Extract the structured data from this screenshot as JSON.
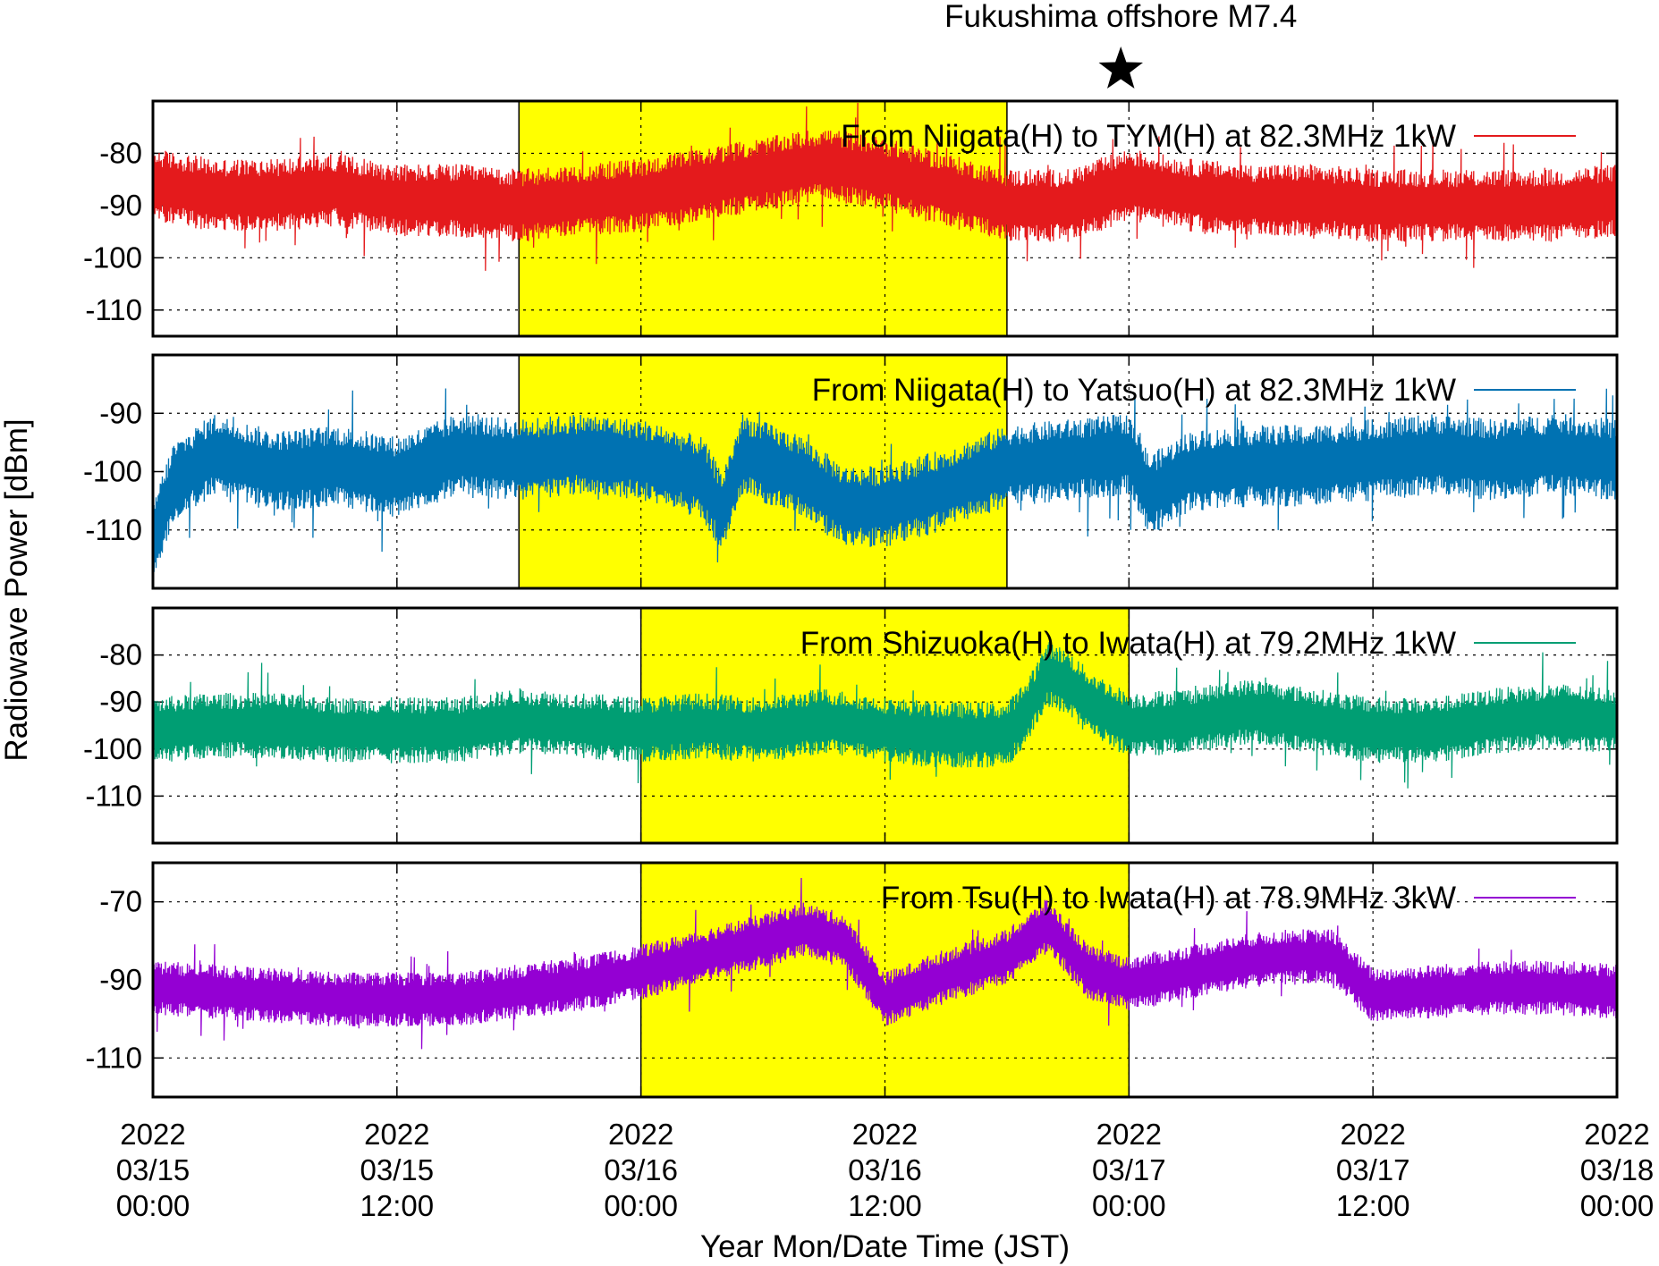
{
  "chart_data": {
    "type": "line",
    "xlabel": "Year Mon/Date Time (JST)",
    "ylabel": "Radiowave Power [dBm]",
    "x_range": [
      "2022-03-15 00:00",
      "2022-03-18 00:00"
    ],
    "x_ticks": [
      {
        "value": "2022-03-15 00:00",
        "lines": [
          "2022",
          "03/15",
          "00:00"
        ]
      },
      {
        "value": "2022-03-15 12:00",
        "lines": [
          "2022",
          "03/15",
          "12:00"
        ]
      },
      {
        "value": "2022-03-16 00:00",
        "lines": [
          "2022",
          "03/16",
          "00:00"
        ]
      },
      {
        "value": "2022-03-16 12:00",
        "lines": [
          "2022",
          "03/16",
          "12:00"
        ]
      },
      {
        "value": "2022-03-17 00:00",
        "lines": [
          "2022",
          "03/17",
          "00:00"
        ]
      },
      {
        "value": "2022-03-17 12:00",
        "lines": [
          "2022",
          "03/17",
          "12:00"
        ]
      },
      {
        "value": "2022-03-18 00:00",
        "lines": [
          "2022",
          "03/18",
          "00:00"
        ]
      }
    ],
    "grid": true,
    "legend_position": "top-right",
    "annotation": {
      "text": "Fukushima offshore M7.4",
      "marker": "star",
      "x": "2022-03-16 23:36"
    },
    "panels": [
      {
        "series": {
          "name": "From Niigata(H) to TYM(H) at 82.3MHz 1kW",
          "color": "#e41a1c",
          "points": [
            [
              "2022-03-15 00:00",
              -86
            ],
            [
              "2022-03-15 03:00",
              -88
            ],
            [
              "2022-03-15 06:00",
              -88
            ],
            [
              "2022-03-15 09:00",
              -87
            ],
            [
              "2022-03-15 12:00",
              -89
            ],
            [
              "2022-03-15 15:00",
              -89
            ],
            [
              "2022-03-15 18:00",
              -90
            ],
            [
              "2022-03-15 21:00",
              -89
            ],
            [
              "2022-03-16 00:00",
              -88
            ],
            [
              "2022-03-16 03:00",
              -86
            ],
            [
              "2022-03-16 06:00",
              -84
            ],
            [
              "2022-03-16 09:00",
              -82
            ],
            [
              "2022-03-16 12:00",
              -84
            ],
            [
              "2022-03-16 15:00",
              -87
            ],
            [
              "2022-03-16 18:00",
              -90
            ],
            [
              "2022-03-16 21:00",
              -90
            ],
            [
              "2022-03-17 00:00",
              -86
            ],
            [
              "2022-03-17 03:00",
              -88
            ],
            [
              "2022-03-17 06:00",
              -89
            ],
            [
              "2022-03-17 09:00",
              -89
            ],
            [
              "2022-03-17 12:00",
              -90
            ],
            [
              "2022-03-17 15:00",
              -90
            ],
            [
              "2022-03-17 18:00",
              -90
            ],
            [
              "2022-03-17 21:00",
              -90
            ],
            [
              "2022-03-18 00:00",
              -89
            ]
          ]
        },
        "ylim": [
          -115,
          -70
        ],
        "yticks": [
          -80,
          -90,
          -100,
          -110
        ],
        "highlight": [
          "2022-03-15 18:00",
          "2022-03-16 18:00"
        ]
      },
      {
        "series": {
          "name": "From Niigata(H) to Yatsuo(H) at 82.3MHz 1kW",
          "color": "#0072b2",
          "points": [
            [
              "2022-03-15 00:00",
              -112
            ],
            [
              "2022-03-15 01:00",
              -102
            ],
            [
              "2022-03-15 03:00",
              -97
            ],
            [
              "2022-03-15 06:00",
              -100
            ],
            [
              "2022-03-15 09:00",
              -99
            ],
            [
              "2022-03-15 12:00",
              -101
            ],
            [
              "2022-03-15 15:00",
              -97
            ],
            [
              "2022-03-15 18:00",
              -98
            ],
            [
              "2022-03-15 21:00",
              -97
            ],
            [
              "2022-03-16 00:00",
              -98
            ],
            [
              "2022-03-16 03:00",
              -101
            ],
            [
              "2022-03-16 04:00",
              -107
            ],
            [
              "2022-03-16 05:00",
              -97
            ],
            [
              "2022-03-16 08:00",
              -101
            ],
            [
              "2022-03-16 10:00",
              -106
            ],
            [
              "2022-03-16 12:00",
              -106
            ],
            [
              "2022-03-16 15:00",
              -103
            ],
            [
              "2022-03-16 18:00",
              -99
            ],
            [
              "2022-03-16 21:00",
              -98
            ],
            [
              "2022-03-17 00:00",
              -97
            ],
            [
              "2022-03-17 01:00",
              -104
            ],
            [
              "2022-03-17 03:00",
              -100
            ],
            [
              "2022-03-17 06:00",
              -99
            ],
            [
              "2022-03-17 09:00",
              -99
            ],
            [
              "2022-03-17 12:00",
              -98
            ],
            [
              "2022-03-17 15:00",
              -97
            ],
            [
              "2022-03-17 18:00",
              -98
            ],
            [
              "2022-03-17 21:00",
              -97
            ],
            [
              "2022-03-18 00:00",
              -98
            ]
          ]
        },
        "ylim": [
          -120,
          -80
        ],
        "yticks": [
          -90,
          -100,
          -110
        ],
        "highlight": [
          "2022-03-15 18:00",
          "2022-03-16 18:00"
        ]
      },
      {
        "series": {
          "name": "From Shizuoka(H) to Iwata(H) at 79.2MHz 1kW",
          "color": "#009e73",
          "points": [
            [
              "2022-03-15 00:00",
              -96
            ],
            [
              "2022-03-15 03:00",
              -95
            ],
            [
              "2022-03-15 06:00",
              -95
            ],
            [
              "2022-03-15 09:00",
              -96
            ],
            [
              "2022-03-15 12:00",
              -96
            ],
            [
              "2022-03-15 15:00",
              -96
            ],
            [
              "2022-03-15 18:00",
              -94
            ],
            [
              "2022-03-15 21:00",
              -95
            ],
            [
              "2022-03-16 00:00",
              -96
            ],
            [
              "2022-03-16 03:00",
              -95
            ],
            [
              "2022-03-16 06:00",
              -96
            ],
            [
              "2022-03-16 09:00",
              -94
            ],
            [
              "2022-03-16 12:00",
              -96
            ],
            [
              "2022-03-16 15:00",
              -97
            ],
            [
              "2022-03-16 18:00",
              -97
            ],
            [
              "2022-03-16 19:00",
              -92
            ],
            [
              "2022-03-16 20:00",
              -84
            ],
            [
              "2022-03-16 21:00",
              -86
            ],
            [
              "2022-03-16 22:00",
              -90
            ],
            [
              "2022-03-17 00:00",
              -95
            ],
            [
              "2022-03-17 03:00",
              -94
            ],
            [
              "2022-03-17 06:00",
              -92
            ],
            [
              "2022-03-17 09:00",
              -94
            ],
            [
              "2022-03-17 12:00",
              -96
            ],
            [
              "2022-03-17 15:00",
              -96
            ],
            [
              "2022-03-17 18:00",
              -94
            ],
            [
              "2022-03-17 21:00",
              -93
            ],
            [
              "2022-03-18 00:00",
              -94
            ]
          ]
        },
        "ylim": [
          -120,
          -70
        ],
        "yticks": [
          -80,
          -90,
          -100,
          -110
        ],
        "highlight": [
          "2022-03-16 00:00",
          "2022-03-17 00:00"
        ]
      },
      {
        "series": {
          "name": "From Tsu(H) to Iwata(H) at 78.9MHz 3kW",
          "color": "#9400d3",
          "points": [
            [
              "2022-03-15 00:00",
              -92
            ],
            [
              "2022-03-15 03:00",
              -93
            ],
            [
              "2022-03-15 06:00",
              -94
            ],
            [
              "2022-03-15 09:00",
              -95
            ],
            [
              "2022-03-15 12:00",
              -95
            ],
            [
              "2022-03-15 15:00",
              -95
            ],
            [
              "2022-03-15 18:00",
              -93
            ],
            [
              "2022-03-15 21:00",
              -91
            ],
            [
              "2022-03-16 00:00",
              -88
            ],
            [
              "2022-03-16 03:00",
              -84
            ],
            [
              "2022-03-16 06:00",
              -80
            ],
            [
              "2022-03-16 08:00",
              -77
            ],
            [
              "2022-03-16 10:00",
              -80
            ],
            [
              "2022-03-16 12:00",
              -95
            ],
            [
              "2022-03-16 15:00",
              -89
            ],
            [
              "2022-03-16 18:00",
              -84
            ],
            [
              "2022-03-16 20:00",
              -76
            ],
            [
              "2022-03-16 22:00",
              -88
            ],
            [
              "2022-03-17 00:00",
              -91
            ],
            [
              "2022-03-17 03:00",
              -88
            ],
            [
              "2022-03-17 06:00",
              -85
            ],
            [
              "2022-03-17 08:00",
              -84
            ],
            [
              "2022-03-17 10:00",
              -84
            ],
            [
              "2022-03-17 12:00",
              -94
            ],
            [
              "2022-03-17 15:00",
              -93
            ],
            [
              "2022-03-17 18:00",
              -92
            ],
            [
              "2022-03-17 21:00",
              -92
            ],
            [
              "2022-03-18 00:00",
              -93
            ]
          ]
        },
        "ylim": [
          -120,
          -60
        ],
        "yticks": [
          -70,
          -90,
          -110
        ],
        "highlight": [
          "2022-03-16 00:00",
          "2022-03-17 00:00"
        ]
      }
    ]
  }
}
